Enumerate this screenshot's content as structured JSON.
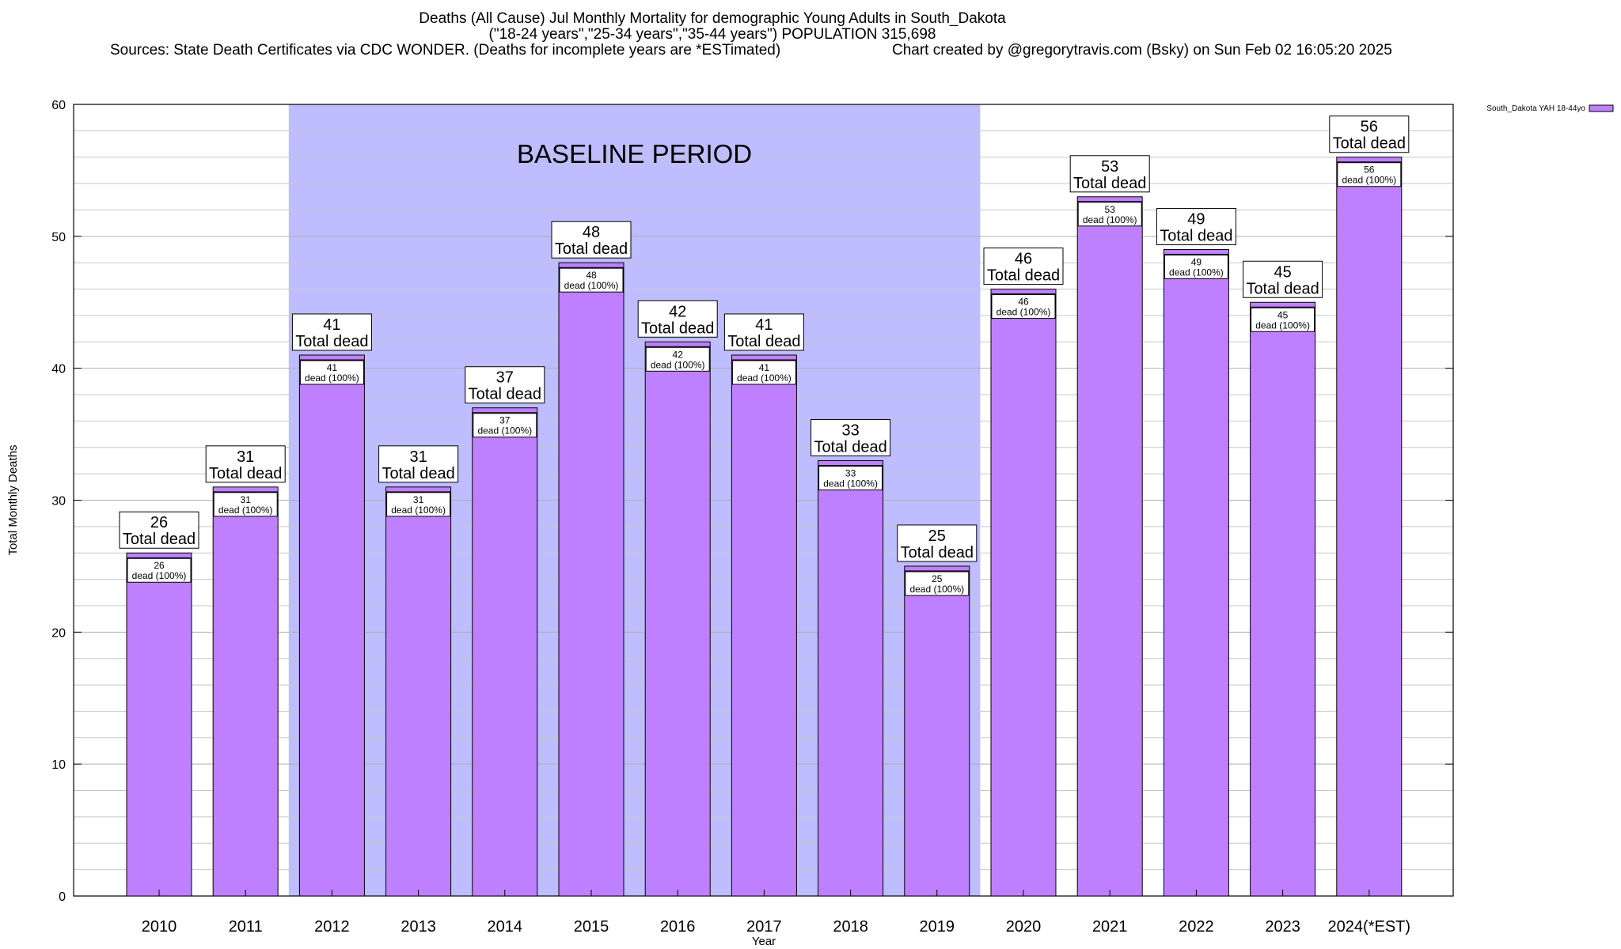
{
  "title": {
    "line1": "Deaths (All Cause) Jul Monthly Mortality for demographic Young Adults in South_Dakota",
    "line2": "(\"18-24 years\",\"25-34 years\",\"35-44 years\") POPULATION 315,698",
    "line3_left": "Sources: State Death Certificates via CDC WONDER. (Deaths for incomplete years are *ESTimated)",
    "line3_right": "Chart created by @gregorytravis.com (Bsky) on Sun Feb 02 16:05:20 2025"
  },
  "chart_data": {
    "type": "bar",
    "xlabel": "Year",
    "ylabel": "Total Monthly Deaths",
    "ylim": [
      0,
      60
    ],
    "yticks": [
      0,
      10,
      20,
      30,
      40,
      50,
      60
    ],
    "grid": true,
    "legend": {
      "placement": "top-right",
      "entries": [
        "South_Dakota YAH 18-44yo"
      ]
    },
    "categories": [
      "2010",
      "2011",
      "2012",
      "2013",
      "2014",
      "2015",
      "2016",
      "2017",
      "2018",
      "2019",
      "2020",
      "2021",
      "2022",
      "2023",
      "2024(*EST)"
    ],
    "series": [
      {
        "name": "South_Dakota YAH 18-44yo",
        "values": [
          26,
          31,
          41,
          31,
          37,
          48,
          42,
          41,
          33,
          25,
          46,
          53,
          49,
          45,
          56
        ]
      }
    ],
    "bar_label_suffix": "Total dead",
    "inner_label_line2": "dead (100%)",
    "baseline": {
      "label": "BASELINE PERIOD",
      "from": "2012",
      "to": "2019"
    },
    "colors": {
      "bar": "#bf80ff",
      "baseline": "#bdbdff",
      "grid": "#c8c8c8"
    }
  }
}
